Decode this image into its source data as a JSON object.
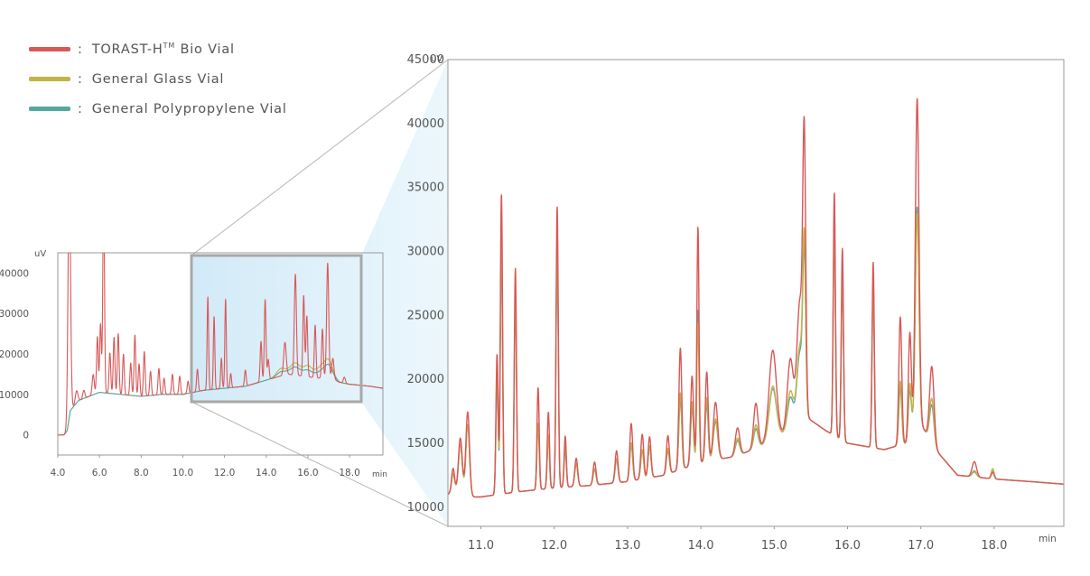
{
  "legend": [
    {
      "label_pre": "TORAST-H",
      "label_sup": "TM",
      "label_post": " Bio Vial",
      "color": "#d95757"
    },
    {
      "label_pre": "General Glass Vial",
      "label_sup": "",
      "label_post": "",
      "color": "#c2b446"
    },
    {
      "label_pre": "General Polypropylene Vial",
      "label_sup": "",
      "label_post": "",
      "color": "#55a8a0"
    }
  ],
  "chart_data": [
    {
      "type": "line",
      "name": "overview",
      "xlabel": "min",
      "ylabel": "uV",
      "xlim": [
        4.0,
        19.6
      ],
      "ylim": [
        -5000,
        45000
      ],
      "x_ticks": [
        "4.0",
        "6.0",
        "8.0",
        "10.0",
        "12.0",
        "14.0",
        "16.0",
        "18.0"
      ],
      "y_ticks": [
        "0",
        "10000",
        "20000",
        "30000",
        "40000"
      ],
      "zoom_window_x": [
        10.4,
        18.6
      ],
      "baseline": [
        [
          4.0,
          -100
        ],
        [
          4.3,
          0
        ],
        [
          4.45,
          1000
        ],
        [
          4.6,
          6000
        ],
        [
          5.0,
          8500
        ],
        [
          6.0,
          10500
        ],
        [
          7.0,
          10000
        ],
        [
          8.0,
          9500
        ],
        [
          9.0,
          10000
        ],
        [
          10.0,
          10000
        ],
        [
          11.0,
          11000
        ],
        [
          12.0,
          11500
        ],
        [
          13.0,
          12000
        ],
        [
          14.0,
          13500
        ],
        [
          15.0,
          15000
        ],
        [
          15.8,
          14500
        ],
        [
          16.5,
          14000
        ],
        [
          17.0,
          14500
        ],
        [
          17.5,
          13000
        ],
        [
          18.0,
          12500
        ],
        [
          19.0,
          12000
        ],
        [
          19.6,
          11500
        ]
      ],
      "series": [
        {
          "legend_index": 1,
          "peaks": [
            [
              14.7,
              1800,
              0.2
            ],
            [
              15.4,
              3000,
              0.25
            ],
            [
              16.0,
              2500,
              0.2
            ],
            [
              16.6,
              2500,
              0.25
            ],
            [
              17.0,
              3500,
              0.2
            ]
          ]
        },
        {
          "legend_index": 2,
          "peaks": [
            [
              14.7,
              1000,
              0.2
            ],
            [
              15.4,
              2000,
              0.25
            ],
            [
              16.0,
              1500,
              0.2
            ],
            [
              16.6,
              1500,
              0.25
            ],
            [
              17.0,
              2500,
              0.2
            ]
          ]
        },
        {
          "legend_index": 0,
          "peaks": [
            [
              4.55,
              60000,
              0.06
            ],
            [
              4.9,
              3000,
              0.06
            ],
            [
              5.25,
              2000,
              0.05
            ],
            [
              5.7,
              5000,
              0.05
            ],
            [
              5.9,
              14000,
              0.04
            ],
            [
              6.05,
              17000,
              0.04
            ],
            [
              6.2,
              50000,
              0.04
            ],
            [
              6.5,
              10000,
              0.04
            ],
            [
              6.7,
              14000,
              0.04
            ],
            [
              6.9,
              15000,
              0.04
            ],
            [
              7.15,
              10000,
              0.04
            ],
            [
              7.5,
              8000,
              0.04
            ],
            [
              7.7,
              15000,
              0.04
            ],
            [
              7.9,
              8000,
              0.04
            ],
            [
              8.15,
              11000,
              0.04
            ],
            [
              8.45,
              6000,
              0.04
            ],
            [
              8.85,
              6500,
              0.04
            ],
            [
              9.1,
              4000,
              0.04
            ],
            [
              9.5,
              5000,
              0.04
            ],
            [
              9.85,
              4500,
              0.04
            ],
            [
              10.25,
              3000,
              0.04
            ],
            [
              10.7,
              5500,
              0.04
            ],
            [
              11.2,
              23000,
              0.035
            ],
            [
              11.5,
              18000,
              0.035
            ],
            [
              11.85,
              7500,
              0.035
            ],
            [
              12.05,
              22000,
              0.035
            ],
            [
              12.3,
              3500,
              0.035
            ],
            [
              13.0,
              4000,
              0.04
            ],
            [
              13.75,
              10000,
              0.04
            ],
            [
              13.95,
              20000,
              0.04
            ],
            [
              14.1,
              5000,
              0.04
            ],
            [
              14.9,
              8000,
              0.06
            ],
            [
              15.4,
              25000,
              0.05
            ],
            [
              15.8,
              20000,
              0.04
            ],
            [
              15.95,
              15000,
              0.04
            ],
            [
              16.35,
              13000,
              0.04
            ],
            [
              16.7,
              12000,
              0.04
            ],
            [
              16.95,
              28000,
              0.05
            ],
            [
              17.2,
              5000,
              0.05
            ],
            [
              17.75,
              1500,
              0.05
            ]
          ]
        }
      ]
    },
    {
      "type": "line",
      "name": "zoomed",
      "xlabel": "min",
      "ylabel": "uV",
      "xlim": [
        10.55,
        18.95
      ],
      "ylim": [
        8500,
        45000
      ],
      "x_ticks": [
        "11.0",
        "12.0",
        "13.0",
        "14.0",
        "15.0",
        "16.0",
        "17.0",
        "18.0"
      ],
      "y_ticks": [
        "10000",
        "15000",
        "20000",
        "25000",
        "30000",
        "35000",
        "40000",
        "45000"
      ],
      "baseline": [
        [
          10.55,
          11000
        ],
        [
          10.7,
          11500
        ],
        [
          10.85,
          10800
        ],
        [
          11.0,
          10800
        ],
        [
          11.5,
          11200
        ],
        [
          12.0,
          11500
        ],
        [
          12.5,
          11700
        ],
        [
          13.0,
          12000
        ],
        [
          13.5,
          12500
        ],
        [
          14.0,
          13500
        ],
        [
          14.5,
          14000
        ],
        [
          14.9,
          15000
        ],
        [
          15.2,
          16000
        ],
        [
          15.45,
          17000
        ],
        [
          15.7,
          16000
        ],
        [
          16.0,
          15000
        ],
        [
          16.5,
          14500
        ],
        [
          16.8,
          15000
        ],
        [
          16.95,
          17000
        ],
        [
          17.2,
          14500
        ],
        [
          17.5,
          12500
        ],
        [
          18.0,
          12200
        ],
        [
          18.5,
          12000
        ],
        [
          18.95,
          11800
        ]
      ],
      "series": [
        {
          "legend_index": 2,
          "peaks": [
            [
              10.62,
              1400,
              0.02
            ],
            [
              10.72,
              3500,
              0.025
            ],
            [
              10.82,
              5500,
              0.025
            ],
            [
              11.22,
              9000,
              0.015
            ],
            [
              11.28,
              19000,
              0.015
            ],
            [
              11.47,
              15000,
              0.015
            ],
            [
              11.78,
              5000,
              0.015
            ],
            [
              11.92,
              4000,
              0.015
            ],
            [
              12.04,
              19000,
              0.015
            ],
            [
              12.15,
              3000,
              0.015
            ],
            [
              12.3,
              1800,
              0.02
            ],
            [
              12.55,
              1200,
              0.02
            ],
            [
              12.85,
              1800,
              0.02
            ],
            [
              13.05,
              2800,
              0.02
            ],
            [
              13.2,
              2200,
              0.02
            ],
            [
              13.3,
              2400,
              0.02
            ],
            [
              13.55,
              1800,
              0.02
            ],
            [
              13.72,
              5500,
              0.02
            ],
            [
              13.88,
              4500,
              0.02
            ],
            [
              13.96,
              12000,
              0.015
            ],
            [
              14.08,
              4500,
              0.02
            ],
            [
              14.2,
              3000,
              0.03
            ],
            [
              14.5,
              1200,
              0.03
            ],
            [
              14.75,
              1500,
              0.03
            ],
            [
              14.98,
              4000,
              0.05
            ],
            [
              15.22,
              2500,
              0.04
            ],
            [
              15.35,
              5500,
              0.04
            ],
            [
              15.41,
              12000,
              0.02
            ],
            [
              15.82,
              16000,
              0.015
            ],
            [
              15.93,
              12500,
              0.015
            ],
            [
              16.35,
              12500,
              0.015
            ],
            [
              16.72,
              4500,
              0.02
            ],
            [
              16.85,
              3500,
              0.02
            ],
            [
              16.95,
              16500,
              0.025
            ],
            [
              17.15,
              3000,
              0.03
            ],
            [
              17.73,
              400,
              0.03
            ],
            [
              17.98,
              600,
              0.02
            ]
          ]
        },
        {
          "legend_index": 1,
          "peaks": [
            [
              10.62,
              1400,
              0.02
            ],
            [
              10.72,
              3500,
              0.025
            ],
            [
              10.82,
              5500,
              0.025
            ],
            [
              11.22,
              9500,
              0.015
            ],
            [
              11.28,
              20000,
              0.015
            ],
            [
              11.47,
              15500,
              0.015
            ],
            [
              11.78,
              5200,
              0.015
            ],
            [
              11.92,
              4200,
              0.015
            ],
            [
              12.04,
              19500,
              0.015
            ],
            [
              12.15,
              3200,
              0.015
            ],
            [
              12.3,
              1800,
              0.02
            ],
            [
              12.55,
              1300,
              0.02
            ],
            [
              12.85,
              1900,
              0.02
            ],
            [
              13.05,
              3000,
              0.02
            ],
            [
              13.2,
              2300,
              0.02
            ],
            [
              13.3,
              2500,
              0.02
            ],
            [
              13.55,
              2000,
              0.02
            ],
            [
              13.72,
              6000,
              0.02
            ],
            [
              13.88,
              5000,
              0.02
            ],
            [
              13.96,
              11000,
              0.015
            ],
            [
              14.08,
              5000,
              0.02
            ],
            [
              14.2,
              3200,
              0.03
            ],
            [
              14.5,
              1400,
              0.03
            ],
            [
              14.75,
              1800,
              0.03
            ],
            [
              14.98,
              4200,
              0.05
            ],
            [
              15.22,
              3000,
              0.04
            ],
            [
              15.35,
              6000,
              0.04
            ],
            [
              15.41,
              13000,
              0.02
            ],
            [
              15.82,
              16500,
              0.015
            ],
            [
              15.93,
              13000,
              0.015
            ],
            [
              16.35,
              13000,
              0.015
            ],
            [
              16.72,
              5000,
              0.02
            ],
            [
              16.85,
              4000,
              0.02
            ],
            [
              16.95,
              16000,
              0.025
            ],
            [
              17.15,
              3500,
              0.03
            ],
            [
              17.73,
              500,
              0.03
            ],
            [
              17.98,
              800,
              0.02
            ]
          ]
        },
        {
          "legend_index": 0,
          "peaks": [
            [
              10.62,
              1800,
              0.02
            ],
            [
              10.72,
              4000,
              0.025
            ],
            [
              10.82,
              6500,
              0.025
            ],
            [
              11.22,
              11000,
              0.015
            ],
            [
              11.28,
              23500,
              0.015
            ],
            [
              11.47,
              17500,
              0.015
            ],
            [
              11.78,
              8000,
              0.015
            ],
            [
              11.92,
              6000,
              0.015
            ],
            [
              12.04,
              22000,
              0.015
            ],
            [
              12.15,
              4000,
              0.015
            ],
            [
              12.3,
              2200,
              0.02
            ],
            [
              12.55,
              1800,
              0.02
            ],
            [
              12.85,
              2500,
              0.02
            ],
            [
              13.05,
              4500,
              0.02
            ],
            [
              13.2,
              3500,
              0.02
            ],
            [
              13.3,
              3200,
              0.02
            ],
            [
              13.55,
              3000,
              0.02
            ],
            [
              13.72,
              9500,
              0.02
            ],
            [
              13.88,
              7000,
              0.02
            ],
            [
              13.96,
              18500,
              0.015
            ],
            [
              14.08,
              7000,
              0.02
            ],
            [
              14.2,
              4500,
              0.03
            ],
            [
              14.5,
              2200,
              0.03
            ],
            [
              14.75,
              3500,
              0.03
            ],
            [
              14.98,
              7000,
              0.05
            ],
            [
              15.22,
              5500,
              0.04
            ],
            [
              15.35,
              9500,
              0.04
            ],
            [
              15.41,
              20500,
              0.02
            ],
            [
              15.82,
              19000,
              0.015
            ],
            [
              15.93,
              15000,
              0.015
            ],
            [
              16.35,
              14500,
              0.015
            ],
            [
              16.72,
              10000,
              0.02
            ],
            [
              16.85,
              8000,
              0.02
            ],
            [
              16.95,
              25000,
              0.025
            ],
            [
              17.15,
              6000,
              0.03
            ],
            [
              17.73,
              1200,
              0.03
            ],
            [
              17.98,
              500,
              0.02
            ]
          ]
        }
      ]
    }
  ]
}
